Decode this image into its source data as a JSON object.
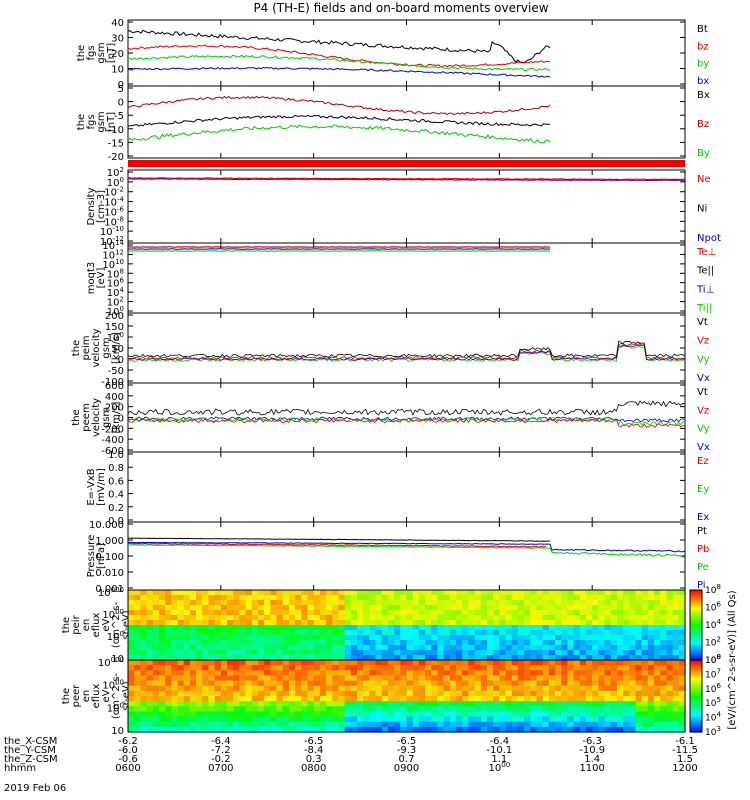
{
  "title": "P4 (TH-E) fields and on-board moments overview",
  "chart_data": {
    "type": "line",
    "xlim": [
      "0600",
      "1200"
    ],
    "x_ticks": [
      "0600",
      "0700",
      "0800",
      "0900",
      "1000",
      "1100",
      "1200"
    ],
    "footer": {
      "rows": [
        {
          "label": "the_X-CSM",
          "values": [
            "-6.2",
            "-6.4",
            "-6.5",
            "-6.5",
            "-6.4",
            "-6.3",
            "-6.1"
          ]
        },
        {
          "label": "the_Y-CSM",
          "values": [
            "-6.0",
            "-7.2",
            "-8.4",
            "-9.3",
            "-10.1",
            "-10.9",
            "-11.5"
          ]
        },
        {
          "label": "the_Z-CSM",
          "values": [
            "-0.6",
            "-0.2",
            "0.3",
            "0.7",
            "1.1",
            "1.4",
            "1.5"
          ]
        },
        {
          "label": "hhmm",
          "values": [
            "0600",
            "0700",
            "0800",
            "0900",
            "1000",
            "1100",
            "1200"
          ]
        }
      ],
      "date": "2019 Feb 06"
    },
    "panels": [
      {
        "ylabel": [
          "the",
          "fgs",
          "gsm",
          "[nT]"
        ],
        "yticks": [
          "0",
          "10",
          "20",
          "30",
          "40"
        ],
        "ylim": [
          0,
          42
        ],
        "series": [
          {
            "name": "Bt",
            "color": "#000000"
          },
          {
            "name": "bz",
            "color": "#e00000"
          },
          {
            "name": "by",
            "color": "#00cc00"
          },
          {
            "name": "bx",
            "color": "#0000cc"
          }
        ]
      },
      {
        "ylabel": [
          "the",
          "fgs",
          "gsm",
          "[nT]"
        ],
        "yticks": [
          "-20",
          "-15",
          "-10",
          "-5",
          "0",
          "5"
        ],
        "ylim": [
          -22,
          8
        ],
        "series": [
          {
            "name": "Bx",
            "color": "#000000"
          },
          {
            "name": "Bz",
            "color": "#b00000"
          },
          {
            "name": "By",
            "color": "#00cc00"
          }
        ]
      },
      {
        "ylabel": [
          "Density",
          "[cm-3]"
        ],
        "yticks": [
          "10-12",
          "10-10",
          "10-8",
          "10-6",
          "10-4",
          "10-2",
          "100",
          "102"
        ],
        "ylim_log": [
          -12,
          2
        ],
        "series": [
          {
            "name": "Ne",
            "color": "#e00000"
          },
          {
            "name": "Ni",
            "color": "#000000"
          },
          {
            "name": "Npot",
            "color": "#0000cc"
          }
        ]
      },
      {
        "ylabel": [
          "moqt3",
          "[eV]"
        ],
        "yticks": [
          "100",
          "102",
          "104",
          "106",
          "108",
          "1010",
          "1012",
          "1014"
        ],
        "series": [
          {
            "name": "Te⊥",
            "color": "#e00000"
          },
          {
            "name": "Te||",
            "color": "#000000"
          },
          {
            "name": "Ti⊥",
            "color": "#0000cc"
          },
          {
            "name": "Ti||",
            "color": "#00cc00"
          }
        ]
      },
      {
        "ylabel": [
          "the",
          "peim",
          "velocity",
          "gsm",
          "[km/s]"
        ],
        "yticks": [
          "-100",
          "-50",
          "0",
          "50",
          "100",
          "150",
          "200"
        ],
        "ylim": [
          -100,
          200
        ],
        "series": [
          {
            "name": "Vt",
            "color": "#000000"
          },
          {
            "name": "Vz",
            "color": "#e00000"
          },
          {
            "name": "Vy",
            "color": "#00cc00"
          },
          {
            "name": "Vx",
            "color": "#0000cc"
          }
        ]
      },
      {
        "ylabel": [
          "the",
          "peem",
          "velocity",
          "gsm",
          "[km/s]"
        ],
        "yticks": [
          "-600",
          "-400",
          "-200",
          "0",
          "200",
          "400",
          "600"
        ],
        "ylim": [
          -600,
          600
        ],
        "series": [
          {
            "name": "Vt",
            "color": "#000000"
          },
          {
            "name": "Vz",
            "color": "#e00000"
          },
          {
            "name": "Vy",
            "color": "#00cc00"
          },
          {
            "name": "Vx",
            "color": "#0000cc"
          }
        ]
      },
      {
        "ylabel": [
          "E=-VxB",
          "[mV/m]"
        ],
        "yticks": [
          "0.0",
          "0.2",
          "0.4",
          "0.6",
          "0.8",
          "1.0"
        ],
        "ylim": [
          0,
          1
        ],
        "series": [
          {
            "name": "Ez",
            "color": "#e00000"
          },
          {
            "name": "Ey",
            "color": "#00cc00"
          },
          {
            "name": "Ex",
            "color": "#0000cc"
          }
        ]
      },
      {
        "ylabel": [
          "Pressure",
          "[nPa]"
        ],
        "yticks": [
          "0.001",
          "0.010",
          "0.100",
          "1.000",
          "10.000"
        ],
        "ylim_log": [
          -3,
          1
        ],
        "series": [
          {
            "name": "Pt",
            "color": "#000000"
          },
          {
            "name": "Pb",
            "color": "#e00000"
          },
          {
            "name": "Pe",
            "color": "#00cc00"
          },
          {
            "name": "Pi",
            "color": "#0000cc"
          }
        ]
      },
      {
        "type": "heatmap",
        "ylabel": [
          "the",
          "peir",
          "en",
          "eflux",
          "eV",
          "(cm^2-s-",
          "sr-eV)"
        ],
        "yticks": [
          "10",
          "100",
          "1000",
          "10000"
        ],
        "colorbar_ticks": [
          "100",
          "102",
          "104",
          "106",
          "108"
        ]
      },
      {
        "type": "heatmap",
        "ylabel": [
          "the",
          "peer",
          "en",
          "eflux",
          "eV",
          "(cm^2-s-",
          "sr-eV)"
        ],
        "yticks": [
          "10",
          "100",
          "1000",
          "10000"
        ],
        "colorbar_ticks": [
          "103",
          "104",
          "105",
          "106",
          "107",
          "108"
        ]
      }
    ],
    "colorbar_label": "[eV/(cm^2-s-sr-eV)] (All Qs)"
  }
}
